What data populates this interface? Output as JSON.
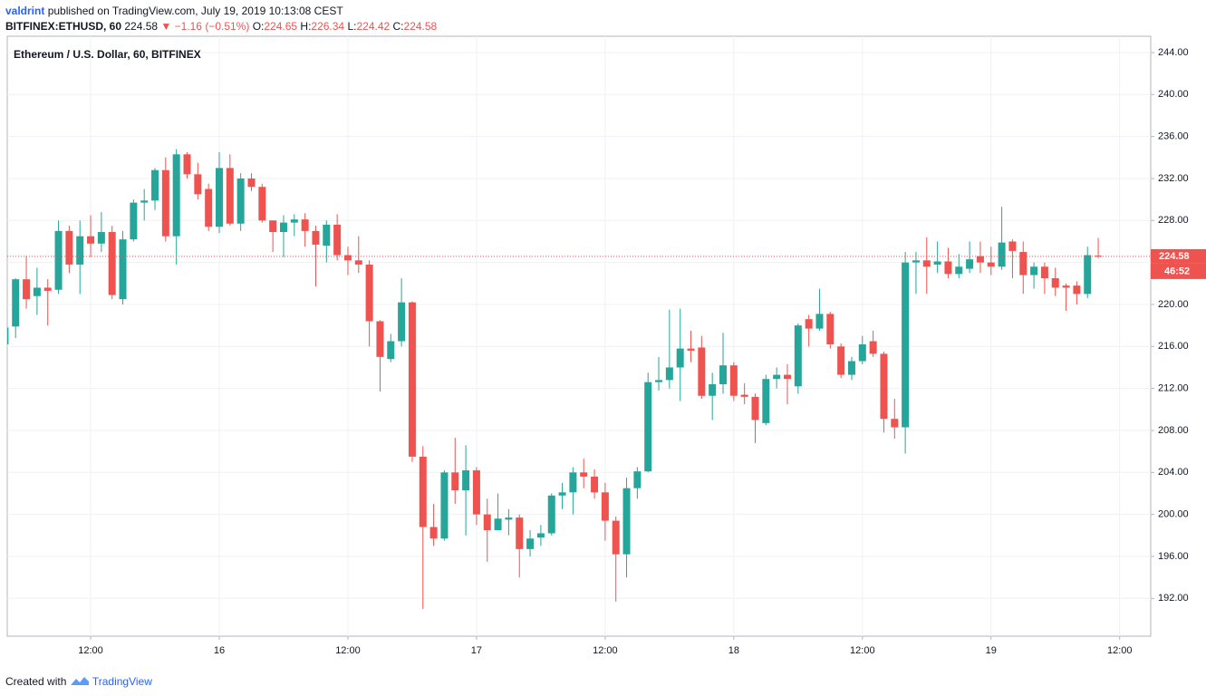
{
  "header": {
    "author": "valdrint",
    "published": "published on TradingView.com, July 19, 2019 10:13:08 CEST",
    "symbol": "BITFINEX:ETHUSD, 60",
    "last": "224.58",
    "change": "▼ −1.16 (−0.51%)",
    "ohlc": [
      {
        "label": "O:",
        "value": "224.65"
      },
      {
        "label": "H:",
        "value": "226.34"
      },
      {
        "label": "L:",
        "value": "224.42"
      },
      {
        "label": "C:",
        "value": "224.58"
      }
    ]
  },
  "footer": {
    "text": "Created with",
    "brand": "TradingView"
  },
  "chart_data": {
    "type": "candlestick",
    "title": "Ethereum / U.S. Dollar, 60, BITFINEX",
    "up_color": "#26a69a",
    "down_color": "#ef5350",
    "grid": true,
    "x": [
      "15 04:00",
      "15 05:00",
      "15 06:00",
      "15 07:00",
      "15 08:00",
      "15 09:00",
      "15 10:00",
      "15 11:00",
      "15 12:00",
      "15 13:00",
      "15 14:00",
      "15 15:00",
      "15 16:00",
      "15 17:00",
      "15 18:00",
      "15 19:00",
      "15 20:00",
      "15 21:00",
      "15 22:00",
      "15 23:00",
      "16 00:00",
      "16 01:00",
      "16 02:00",
      "16 03:00",
      "16 04:00",
      "16 05:00",
      "16 06:00",
      "16 07:00",
      "16 08:00",
      "16 09:00",
      "16 10:00",
      "16 11:00",
      "16 12:00",
      "16 13:00",
      "16 14:00",
      "16 15:00",
      "16 16:00",
      "16 17:00",
      "16 18:00",
      "16 19:00",
      "16 20:00",
      "16 21:00",
      "16 22:00",
      "16 23:00",
      "17 00:00",
      "17 01:00",
      "17 02:00",
      "17 03:00",
      "17 04:00",
      "17 05:00",
      "17 06:00",
      "17 07:00",
      "17 08:00",
      "17 09:00",
      "17 10:00",
      "17 11:00",
      "17 12:00",
      "17 13:00",
      "17 14:00",
      "17 15:00",
      "17 16:00",
      "17 17:00",
      "17 18:00",
      "17 19:00",
      "17 20:00",
      "17 21:00",
      "17 22:00",
      "17 23:00",
      "18 00:00",
      "18 01:00",
      "18 02:00",
      "18 03:00",
      "18 04:00",
      "18 05:00",
      "18 06:00",
      "18 07:00",
      "18 08:00",
      "18 09:00",
      "18 10:00",
      "18 11:00",
      "18 12:00",
      "18 13:00",
      "18 14:00",
      "18 15:00",
      "18 16:00",
      "18 17:00",
      "18 18:00",
      "18 19:00",
      "18 20:00",
      "18 21:00",
      "18 22:00",
      "18 23:00",
      "19 00:00",
      "19 01:00",
      "19 02:00",
      "19 03:00",
      "19 04:00",
      "19 05:00",
      "19 06:00",
      "19 07:00",
      "19 08:00",
      "19 09:00",
      "19 10:00"
    ],
    "open": [
      216.2,
      217.9,
      222.4,
      220.8,
      221.6,
      221.4,
      227,
      223.8,
      226.5,
      225.8,
      226.9,
      220.5,
      226.2,
      229.7,
      229.9,
      232.8,
      226.5,
      234.3,
      232.4,
      231,
      227.4,
      233,
      227.7,
      232,
      231.2,
      228,
      226.9,
      227.8,
      228.1,
      227,
      225.6,
      227.6,
      224.7,
      224.2,
      223.8,
      218.4,
      214.8,
      216.5,
      220.2,
      205.5,
      198.8,
      197.7,
      204,
      202.3,
      204.2,
      200,
      198.5,
      199.5,
      199.7,
      196.7,
      197.8,
      198.2,
      201.8,
      202.1,
      204,
      203.6,
      202.1,
      199.4,
      196.2,
      202.5,
      204.1,
      212.6,
      212.8,
      214,
      215.8,
      215.9,
      211.3,
      212.4,
      214.2,
      211.4,
      211.2,
      208.7,
      212.9,
      213.3,
      212.2,
      218.6,
      217.7,
      219.1,
      216,
      213.3,
      214.6,
      216.5,
      215.3,
      209.1,
      208.3,
      224,
      224.2,
      223.8,
      224.1,
      222.9,
      223.4,
      224.6,
      224,
      223.6,
      226,
      225,
      222.8,
      223.6,
      222.5,
      221.8,
      221.8,
      221,
      224.65
    ],
    "high": [
      218,
      222.5,
      224.6,
      223.5,
      222.4,
      228,
      227.5,
      228,
      228.5,
      228.8,
      227.5,
      227,
      230,
      231,
      233,
      234,
      234.8,
      234.5,
      233.5,
      231.5,
      234.5,
      234.3,
      232.5,
      232.5,
      231.5,
      228,
      228.5,
      228.6,
      228.7,
      227.5,
      228,
      228.6,
      225.5,
      226.5,
      224.2,
      218.5,
      217.2,
      222.5,
      220.3,
      206.5,
      201,
      204.2,
      207.3,
      206.6,
      204.5,
      201.5,
      202,
      200.5,
      200,
      198.5,
      199,
      202,
      203,
      204.5,
      205.3,
      204.3,
      203,
      199.8,
      203.5,
      204.5,
      213.5,
      215,
      219.5,
      219.6,
      217.5,
      217,
      213.5,
      217.3,
      214.5,
      212.5,
      211.5,
      213.3,
      214,
      214.3,
      218.2,
      219,
      221.5,
      219.3,
      216.3,
      215,
      217,
      217.5,
      215.5,
      211,
      225,
      225,
      226.4,
      226,
      225.4,
      224.8,
      226,
      226,
      225.5,
      229.3,
      226.2,
      226,
      224,
      224,
      223.5,
      222,
      222.2,
      225.5,
      226.34
    ],
    "low": [
      216,
      216.8,
      219.6,
      219,
      218,
      221,
      223,
      221,
      224.5,
      225,
      220.5,
      220,
      226,
      228,
      229,
      226,
      223.8,
      232,
      230,
      227,
      226.8,
      227.5,
      227,
      230.8,
      227.8,
      225,
      224.5,
      226.5,
      225.5,
      221.7,
      224,
      224.2,
      222.8,
      223,
      216,
      211.7,
      214.5,
      216,
      205,
      191,
      197,
      197.5,
      201,
      198,
      199,
      195.5,
      198.5,
      198,
      194,
      196,
      197,
      198,
      200.5,
      200,
      202.5,
      201.5,
      197.5,
      191.7,
      194,
      201.5,
      204,
      211.8,
      212,
      210.8,
      214.5,
      211,
      209,
      211.5,
      210.8,
      210.5,
      206.8,
      208.5,
      212,
      210.5,
      211.5,
      216,
      217.5,
      215.8,
      213,
      212.8,
      214.3,
      215,
      207.8,
      207.2,
      205.8,
      221,
      221,
      223,
      222.5,
      222.5,
      223,
      223,
      222.8,
      223.3,
      222.5,
      221,
      221.5,
      221,
      220.8,
      219.4,
      220,
      220.6,
      224.42
    ],
    "close": [
      217.8,
      222.4,
      220.5,
      221.6,
      221.3,
      227,
      223.8,
      226.5,
      225.8,
      226.9,
      220.9,
      226.2,
      229.7,
      229.9,
      232.8,
      226.5,
      234.3,
      232.4,
      230.5,
      227.4,
      233,
      227.7,
      232,
      231.2,
      228,
      226.9,
      227.8,
      228.1,
      227,
      225.7,
      227.6,
      224.7,
      224.2,
      223.8,
      218.4,
      215,
      216.5,
      220.2,
      205.5,
      198.8,
      197.7,
      204,
      202.3,
      204.2,
      200,
      198.5,
      199.6,
      199.7,
      196.7,
      197.7,
      198.2,
      201.8,
      202.1,
      204,
      203.6,
      202.1,
      199.4,
      196.2,
      202.5,
      204.1,
      212.6,
      212.8,
      214,
      215.8,
      215.6,
      211.3,
      212.4,
      214.2,
      211.3,
      211.2,
      209,
      212.9,
      213.3,
      212.9,
      218,
      217.7,
      219.1,
      216.2,
      213.3,
      214.6,
      216.2,
      215.3,
      209.1,
      208.3,
      224,
      224.2,
      223.6,
      224.1,
      222.9,
      223.6,
      224.3,
      224,
      223.6,
      225.9,
      225.1,
      222.8,
      223.6,
      222.5,
      221.6,
      221.6,
      221,
      224.7,
      224.58
    ],
    "ylim": [
      188.4,
      245.55
    ],
    "yticks": [
      {
        "value": 192,
        "label": "192.00"
      },
      {
        "value": 196,
        "label": "196.00"
      },
      {
        "value": 200,
        "label": "200.00"
      },
      {
        "value": 204,
        "label": "204.00"
      },
      {
        "value": 208,
        "label": "208.00"
      },
      {
        "value": 212,
        "label": "212.00"
      },
      {
        "value": 216,
        "label": "216.00"
      },
      {
        "value": 220,
        "label": "220.00"
      },
      {
        "value": 224,
        "label": "224.00"
      },
      {
        "value": 228,
        "label": "228.00"
      },
      {
        "value": 232,
        "label": "232.00"
      },
      {
        "value": 236,
        "label": "236.00"
      },
      {
        "value": 240,
        "label": "240.00"
      },
      {
        "value": 244,
        "label": "244.00"
      }
    ],
    "xticks": [
      {
        "value": "15 12:00",
        "label": "12:00"
      },
      {
        "value": "16 00:00",
        "label": "16"
      },
      {
        "value": "16 12:00",
        "label": "12:00"
      },
      {
        "value": "17 00:00",
        "label": "17"
      },
      {
        "value": "17 12:00",
        "label": "12:00"
      },
      {
        "value": "18 00:00",
        "label": "18"
      },
      {
        "value": "18 12:00",
        "label": "12:00"
      },
      {
        "value": "19 00:00",
        "label": "19"
      },
      {
        "value": "19 12:00",
        "label": "12:00"
      }
    ],
    "last_price": 224.58,
    "countdown": "46:52"
  }
}
